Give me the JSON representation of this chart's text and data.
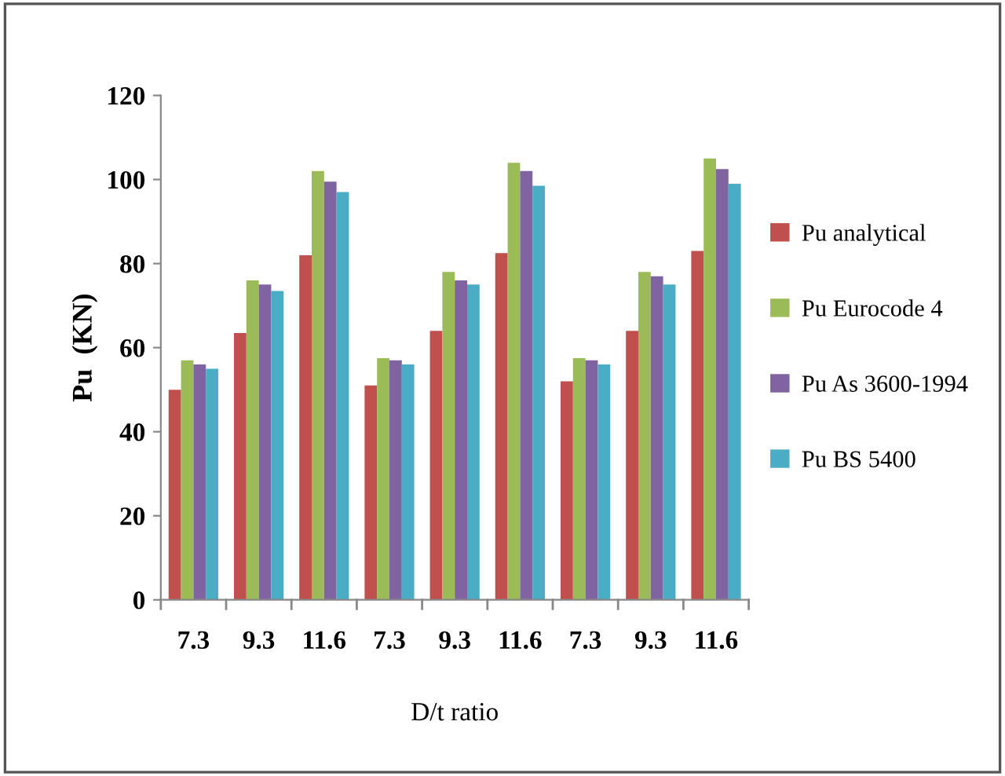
{
  "chart_data": {
    "type": "bar",
    "xlabel": "D/t ratio",
    "ylabel": "Pu  (KN)",
    "categories": [
      "7.3",
      "9.3",
      "11.6",
      "7.3",
      "9.3",
      "11.6",
      "7.3",
      "9.3",
      "11.6"
    ],
    "series": [
      {
        "name": "Pu analytical",
        "color": "#c0504d",
        "values": [
          50,
          63.5,
          82,
          51,
          64,
          82.5,
          52,
          64,
          83
        ]
      },
      {
        "name": "Pu Eurocode 4",
        "color": "#9bbb59",
        "values": [
          57,
          76,
          102,
          57.5,
          78,
          104,
          57.5,
          78,
          105
        ]
      },
      {
        "name": "Pu As 3600-1994",
        "color": "#8064a2",
        "values": [
          56,
          75,
          99.5,
          57,
          76,
          102,
          57,
          77,
          102.5
        ]
      },
      {
        "name": "Pu BS 5400",
        "color": "#4bacc6",
        "values": [
          55,
          73.5,
          97,
          56,
          75,
          98.5,
          56,
          75,
          99
        ]
      }
    ],
    "ylim": [
      0,
      120
    ],
    "yticks": [
      0,
      20,
      40,
      60,
      80,
      100,
      120
    ],
    "grid": false,
    "legend": "right"
  }
}
